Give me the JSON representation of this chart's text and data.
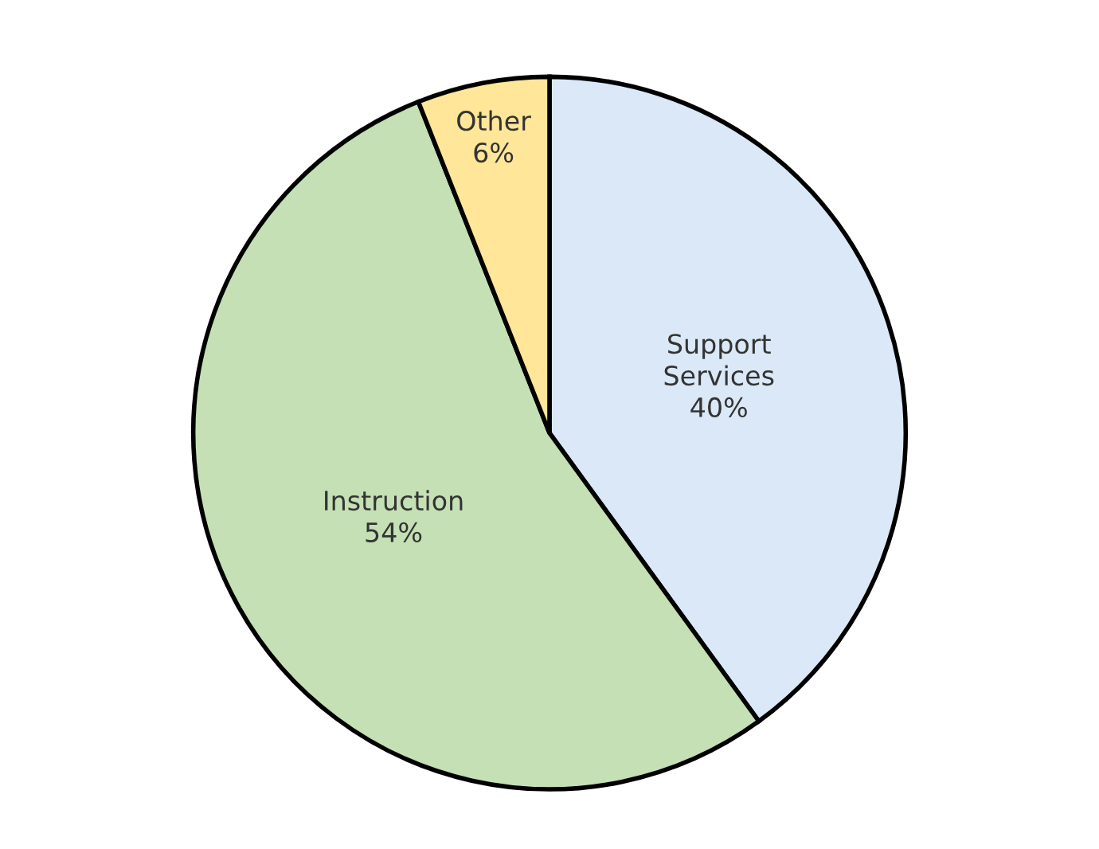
{
  "chart_data": {
    "type": "pie",
    "categories": [
      "Support Services",
      "Instruction",
      "Other"
    ],
    "values": [
      40,
      54,
      6
    ],
    "value_labels": [
      "40%",
      "54%",
      "6%"
    ],
    "colors": [
      "#dae8f7",
      "#c5e0b4",
      "#ffe699"
    ],
    "legend": false
  }
}
